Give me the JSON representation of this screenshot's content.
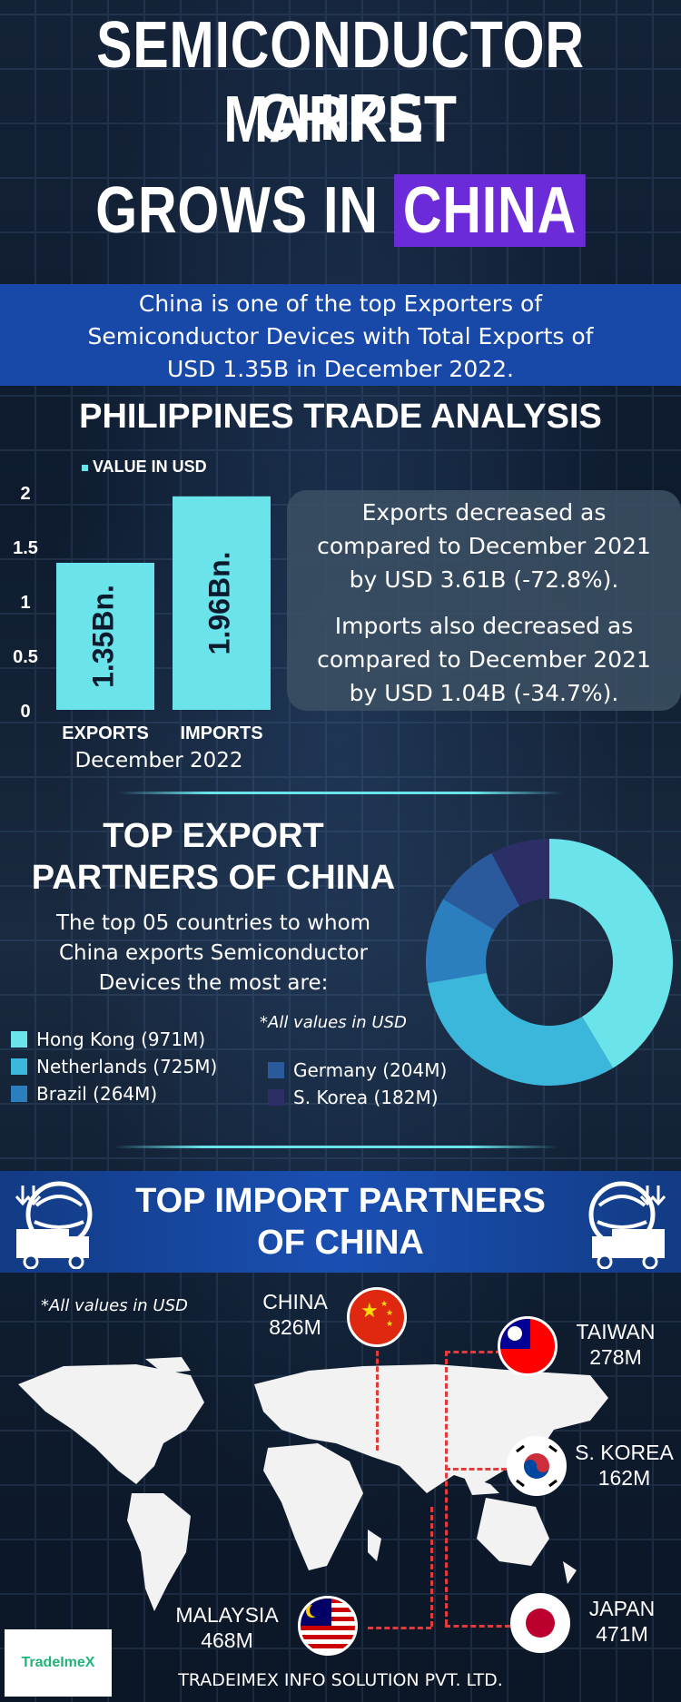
{
  "title": {
    "line1": "SEMICONDUCTOR CHIPS",
    "line2": "MARKET",
    "line3a": "GROWS IN",
    "line3b": "CHINA"
  },
  "banner": {
    "line1": "China is one of the top Exporters of",
    "line2": "Semiconductor Devices with Total Exports of",
    "line3": "USD 1.35B in December 2022."
  },
  "trade": {
    "heading": "PHILIPPINES TRADE ANALYSIS",
    "exports_text": "Exports decreased as compared to December 2021 by USD 3.61B (-72.8%).",
    "imports_text": "Imports also decreased as compared to December 2021 by USD 1.04B (-34.7%).",
    "exports_line1": "Exports decreased as",
    "exports_line2": "compared to December 2021",
    "exports_line3": "by USD 3.61B (-72.8%).",
    "imports_line1": "Imports also decreased as",
    "imports_line2": "compared to December 2021",
    "imports_line3": "by USD 1.04B (-34.7%)."
  },
  "chart_data": {
    "type": "bar",
    "legend": "VALUE IN USD",
    "categories": [
      "EXPORTS",
      "IMPORTS"
    ],
    "values": [
      1.35,
      1.96
    ],
    "data_labels": [
      "1.35Bn.",
      "1.96Bn."
    ],
    "xlabel": "December 2022",
    "ylim": [
      0,
      2
    ],
    "yticks": [
      "0",
      "0.5",
      "1",
      "1.5",
      "2"
    ],
    "bar_color": "#6be3ea"
  },
  "exports": {
    "heading_line1": "TOP EXPORT",
    "heading_line2": "PARTNERS OF CHINA",
    "desc_line1": "The top 05 countries to whom",
    "desc_line2": "China exports Semiconductor",
    "desc_line3": "Devices the most are:",
    "note": "*All values in USD",
    "partners": [
      {
        "label": "Hong Kong (971M)",
        "value": 971,
        "color": "#6be3ea"
      },
      {
        "label": "Netherlands (725M)",
        "value": 725,
        "color": "#3cb7dc"
      },
      {
        "label": "Brazil (264M)",
        "value": 264,
        "color": "#2c7fbf"
      },
      {
        "label": "Germany (204M)",
        "value": 204,
        "color": "#2a5a9c"
      },
      {
        "label": "S. Korea (182M)",
        "value": 182,
        "color": "#2b2f66"
      }
    ]
  },
  "imports": {
    "heading_line1": "TOP IMPORT PARTNERS",
    "heading_line2": "OF CHINA",
    "note": "*All values in USD",
    "countries": [
      {
        "name": "CHINA",
        "value": "826M"
      },
      {
        "name": "TAIWAN",
        "value": "278M"
      },
      {
        "name": "S. KOREA",
        "value": "162M"
      },
      {
        "name": "JAPAN",
        "value": "471M"
      },
      {
        "name": "MALAYSIA",
        "value": "468M"
      }
    ]
  },
  "footer": {
    "logo_text": "TradeImeX",
    "company": "TRADEIMEX INFO SOLUTION PVT. LTD."
  }
}
